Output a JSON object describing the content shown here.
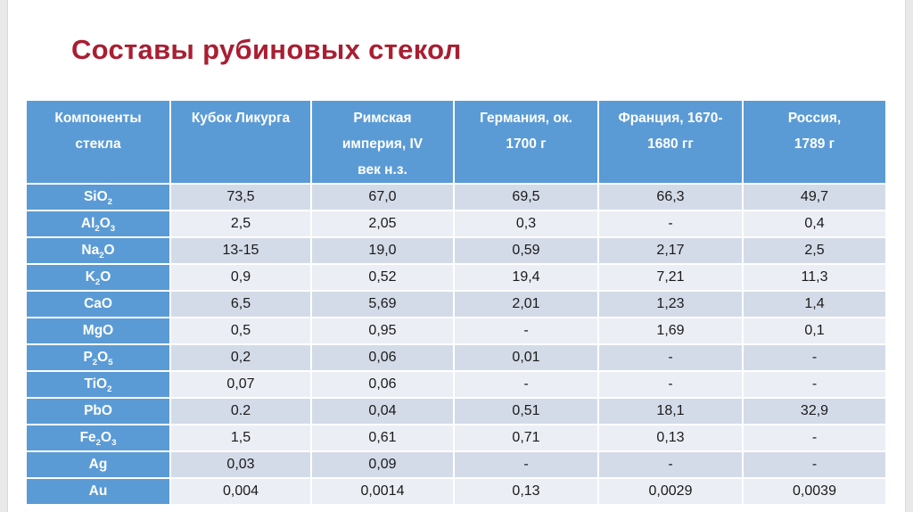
{
  "title": "Составы рубиновых стекол",
  "colors": {
    "title_red": "#a91e32",
    "accent_blue": "#5b9bd5",
    "band_dark": "#d4dbe8",
    "band_light": "#eceef5"
  },
  "table": {
    "columns": [
      "Компоненты\nстекла",
      "Кубок Ликурга",
      "Римская\nимперия, IV\nвек н.з.",
      "Германия, ок.\n1700 г",
      "Франция, 1670-\n1680 гг",
      "Россия,\n1789 г"
    ],
    "rows": [
      {
        "component": "SiO2",
        "values": [
          "73,5",
          "67,0",
          "69,5",
          "66,3",
          "49,7"
        ]
      },
      {
        "component": "Al2O3",
        "values": [
          "2,5",
          "2,05",
          "0,3",
          "-",
          "0,4"
        ]
      },
      {
        "component": "Na2O",
        "values": [
          "13-15",
          "19,0",
          "0,59",
          "2,17",
          "2,5"
        ]
      },
      {
        "component": "K2O",
        "values": [
          "0,9",
          "0,52",
          "19,4",
          "7,21",
          "11,3"
        ]
      },
      {
        "component": "CaO",
        "values": [
          "6,5",
          "5,69",
          "2,01",
          "1,23",
          "1,4"
        ]
      },
      {
        "component": "MgO",
        "values": [
          "0,5",
          "0,95",
          "-",
          "1,69",
          "0,1"
        ]
      },
      {
        "component": "P2O5",
        "values": [
          "0,2",
          "0,06",
          "0,01",
          "-",
          "-"
        ]
      },
      {
        "component": "TiO2",
        "values": [
          "0,07",
          "0,06",
          "-",
          "-",
          "-"
        ]
      },
      {
        "component": "PbO",
        "values": [
          "0.2",
          "0,04",
          "0,51",
          "18,1",
          "32,9"
        ]
      },
      {
        "component": "Fe2O3",
        "values": [
          "1,5",
          "0,61",
          "0,71",
          "0,13",
          "-"
        ]
      },
      {
        "component": "Ag",
        "values": [
          "0,03",
          "0,09",
          "-",
          "-",
          "-"
        ]
      },
      {
        "component": "Au",
        "values": [
          "0,004",
          "0,0014",
          "0,13",
          "0,0029",
          "0,0039"
        ]
      }
    ]
  }
}
